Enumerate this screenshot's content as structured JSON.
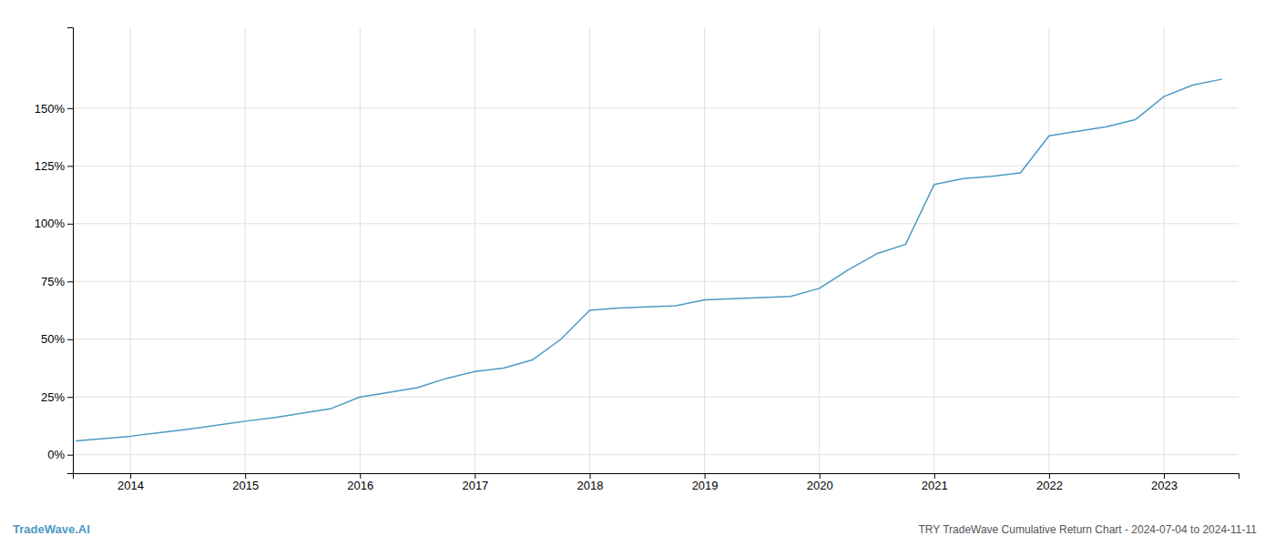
{
  "chart_data": {
    "type": "line",
    "title": "TRY TradeWave Cumulative Return Chart - 2024-07-04 to 2024-11-11",
    "annotations": [
      "TradeWave.AI"
    ],
    "color": "#4d9ac5",
    "x": [
      2013.53,
      2014.0,
      2014.25,
      2014.5,
      2015.0,
      2015.25,
      2015.75,
      2016.0,
      2016.25,
      2016.5,
      2016.75,
      2017.0,
      2017.25,
      2017.5,
      2017.75,
      2018.0,
      2018.25,
      2018.75,
      2019.0,
      2019.25,
      2019.75,
      2020.0,
      2020.25,
      2020.5,
      2020.75,
      2021.0,
      2021.25,
      2021.5,
      2021.75,
      2022.0,
      2022.25,
      2022.5,
      2022.75,
      2023.0,
      2023.25,
      2023.5
    ],
    "values": [
      6.0,
      8.0,
      9.5,
      11.0,
      14.5,
      16.0,
      20.0,
      25.0,
      27.0,
      29.0,
      33.0,
      36.0,
      37.5,
      41.0,
      50.0,
      62.5,
      63.5,
      64.5,
      67.0,
      67.5,
      68.5,
      72.0,
      80.0,
      87.0,
      91.0,
      117.0,
      119.5,
      120.5,
      122.0,
      138.0,
      140.0,
      142.0,
      145.0,
      155.0,
      160.0,
      162.5
    ],
    "xlim": [
      2013.5,
      2023.65
    ],
    "xticks": [
      2014,
      2015,
      2016,
      2017,
      2018,
      2019,
      2020,
      2021,
      2022,
      2023
    ],
    "ylim": [
      -8,
      185
    ],
    "yticks": [
      {
        "value": 0,
        "label": "0%"
      },
      {
        "value": 25,
        "label": "25%"
      },
      {
        "value": 50,
        "label": "50%"
      },
      {
        "value": 75,
        "label": "75%"
      },
      {
        "value": 100,
        "label": "100%"
      },
      {
        "value": 125,
        "label": "125%"
      },
      {
        "value": 150,
        "label": "150%"
      }
    ],
    "grid": true
  }
}
